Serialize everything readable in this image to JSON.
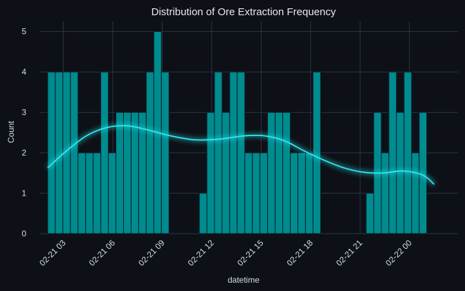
{
  "chart_data": {
    "type": "bar",
    "title": "Distribution of Ore Extraction Frequency",
    "xlabel": "datetime",
    "ylabel": "Count",
    "x_tick_labels": [
      "02-21 03",
      "02-21 06",
      "02-21 09",
      "02-21 12",
      "02-21 15",
      "02-21 18",
      "02-21 21",
      "02-22 00"
    ],
    "x_tick_hours": [
      3,
      6,
      9,
      12,
      15,
      18,
      21,
      24
    ],
    "y_ticks": [
      0,
      1,
      2,
      3,
      4,
      5
    ],
    "ylim": [
      0,
      5.25
    ],
    "xlim_hours": [
      1.55,
      26.95
    ],
    "bin_width_hours": 0.46,
    "bin_start_hour": 2.05,
    "counts": [
      4,
      4,
      4,
      4,
      2,
      2,
      2,
      4,
      2,
      3,
      3,
      3,
      3,
      4,
      5,
      4,
      0,
      0,
      0,
      0,
      1,
      3,
      4,
      3,
      4,
      4,
      2,
      2,
      2,
      3,
      3,
      3,
      2,
      2,
      2,
      4,
      0,
      0,
      0,
      0,
      0,
      0,
      1,
      3,
      2,
      4,
      3,
      4,
      2,
      3
    ],
    "kde": {
      "hours": [
        2.05,
        3.2,
        4.4,
        5.6,
        6.8,
        8.0,
        9.5,
        11.0,
        12.5,
        14.0,
        15.2,
        16.4,
        17.6,
        18.8,
        20.0,
        21.2,
        22.4,
        23.6,
        24.8,
        25.5
      ],
      "values": [
        1.63,
        2.05,
        2.42,
        2.62,
        2.67,
        2.58,
        2.42,
        2.32,
        2.34,
        2.42,
        2.42,
        2.3,
        2.05,
        1.82,
        1.63,
        1.52,
        1.5,
        1.55,
        1.45,
        1.22
      ]
    },
    "grid": true,
    "legend": "none",
    "colors": {
      "background": "#0d1117",
      "bar_fill": "#008b8f",
      "bar_edge": "#0b1e24",
      "kde_line": "#2ee8f0",
      "grid": "#2a3348",
      "text": "#d8dde4"
    }
  }
}
